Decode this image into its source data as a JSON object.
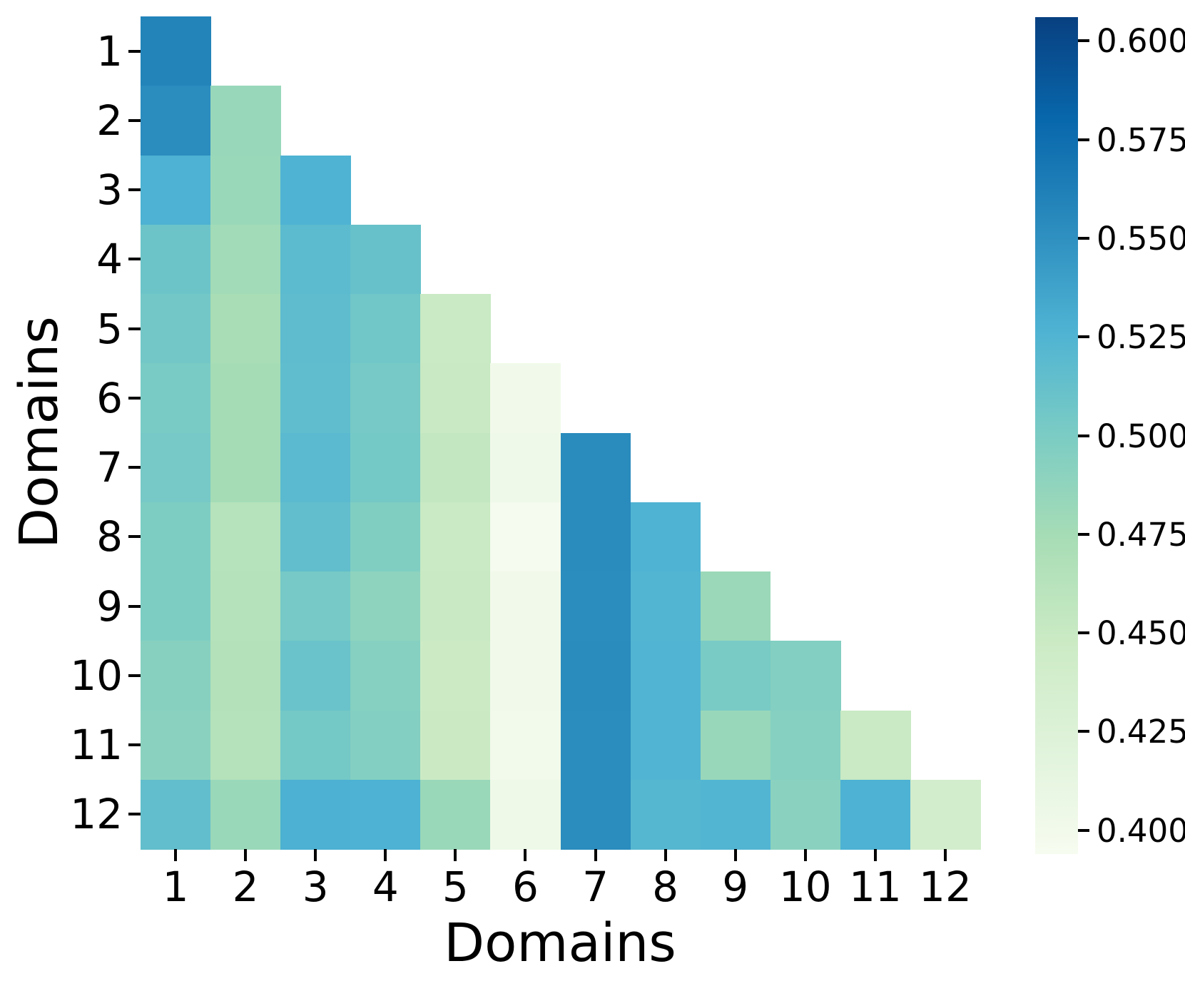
{
  "chart_data": {
    "type": "heatmap",
    "title": "",
    "xlabel": "Domains",
    "ylabel": "Domains",
    "x_ticklabels": [
      "1",
      "2",
      "3",
      "4",
      "5",
      "6",
      "7",
      "8",
      "9",
      "10",
      "11",
      "12"
    ],
    "y_ticklabels": [
      "1",
      "2",
      "3",
      "4",
      "5",
      "6",
      "7",
      "8",
      "9",
      "10",
      "11",
      "12"
    ],
    "shape": "lower-triangular-including-diagonal",
    "vmin": 0.394,
    "vmax": 0.606,
    "colormap": {
      "name": "GnBu",
      "anchors": [
        [
          0.0,
          "#f7fcf0"
        ],
        [
          0.125,
          "#e0f3db"
        ],
        [
          0.25,
          "#ccebc5"
        ],
        [
          0.375,
          "#a8ddb5"
        ],
        [
          0.5,
          "#7bccc4"
        ],
        [
          0.625,
          "#4eb3d3"
        ],
        [
          0.75,
          "#2b8cbe"
        ],
        [
          0.875,
          "#0868ac"
        ],
        [
          1.0,
          "#084081"
        ]
      ]
    },
    "colorbar": {
      "tick_values": [
        0.6,
        0.575,
        0.55,
        0.525,
        0.5,
        0.475,
        0.45,
        0.425,
        0.4
      ],
      "tick_labels": [
        "0.600",
        "0.575",
        "0.550",
        "0.525",
        "0.500",
        "0.475",
        "0.450",
        "0.425",
        "0.400"
      ],
      "position": "right"
    },
    "matrix": [
      [
        0.559,
        null,
        null,
        null,
        null,
        null,
        null,
        null,
        null,
        null,
        null,
        null
      ],
      [
        0.553,
        0.483,
        null,
        null,
        null,
        null,
        null,
        null,
        null,
        null,
        null,
        null
      ],
      [
        0.527,
        0.482,
        0.526,
        null,
        null,
        null,
        null,
        null,
        null,
        null,
        null,
        null
      ],
      [
        0.509,
        0.477,
        0.518,
        0.512,
        null,
        null,
        null,
        null,
        null,
        null,
        null,
        null
      ],
      [
        0.505,
        0.473,
        0.517,
        0.506,
        0.449,
        null,
        null,
        null,
        null,
        null,
        null,
        null
      ],
      [
        0.501,
        0.475,
        0.516,
        0.503,
        0.45,
        0.401,
        null,
        null,
        null,
        null,
        null,
        null
      ],
      [
        0.503,
        0.475,
        0.519,
        0.504,
        0.454,
        0.403,
        0.554,
        null,
        null,
        null,
        null,
        null
      ],
      [
        0.498,
        0.463,
        0.515,
        0.497,
        0.449,
        0.396,
        0.554,
        0.526,
        null,
        null,
        null,
        null
      ],
      [
        0.498,
        0.464,
        0.503,
        0.489,
        0.45,
        0.401,
        0.553,
        0.524,
        0.481,
        null,
        null,
        null
      ],
      [
        0.493,
        0.465,
        0.51,
        0.494,
        0.447,
        0.401,
        0.554,
        0.525,
        0.501,
        0.495,
        null,
        null
      ],
      [
        0.491,
        0.464,
        0.504,
        0.495,
        0.448,
        0.4,
        0.553,
        0.525,
        0.483,
        0.494,
        0.449,
        null
      ],
      [
        0.515,
        0.482,
        0.528,
        0.527,
        0.482,
        0.404,
        0.553,
        0.522,
        0.524,
        0.491,
        0.527,
        0.439
      ]
    ],
    "grid": false,
    "background": "#ffffff"
  }
}
